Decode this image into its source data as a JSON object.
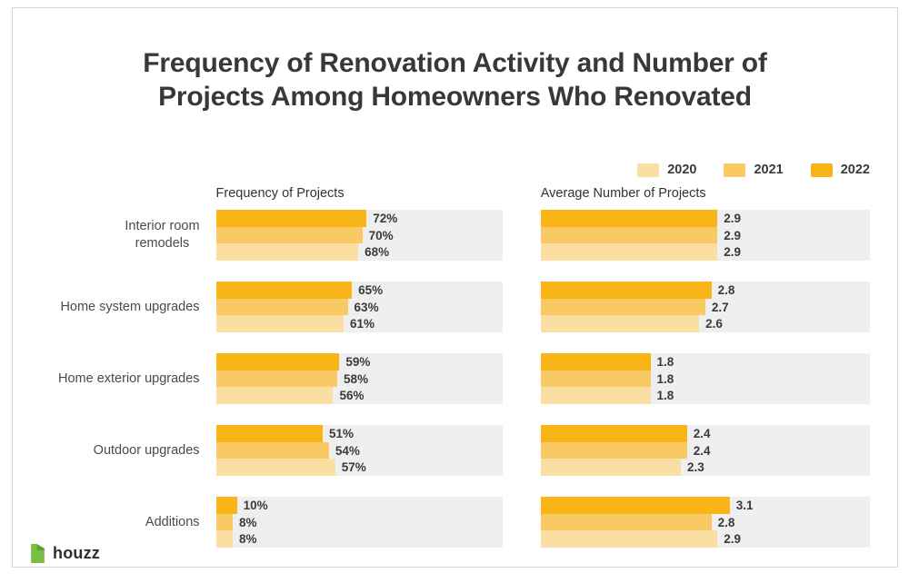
{
  "title": {
    "line1": "Frequency of Renovation Activity and Number of",
    "line2": "Projects Among Homeowners Who Renovated"
  },
  "legend": {
    "items": [
      {
        "label": "2020",
        "color": "#FBDFA2"
      },
      {
        "label": "2021",
        "color": "#F9CA63"
      },
      {
        "label": "2022",
        "color": "#F9B517"
      }
    ]
  },
  "colors": {
    "track": "#EFEFEF",
    "houzz_green": "#76BF43"
  },
  "logo": {
    "text": "houzz"
  },
  "chart_data": [
    {
      "type": "bar",
      "orientation": "horizontal",
      "title": "Frequency of Projects",
      "categories": [
        "Interior room\nremodels",
        "Home system upgrades",
        "Home exterior upgrades",
        "Outdoor upgrades",
        "Additions"
      ],
      "series": [
        {
          "name": "2022",
          "values": [
            72,
            65,
            59,
            51,
            10
          ],
          "labels": [
            "72%",
            "65%",
            "59%",
            "51%",
            "10%"
          ]
        },
        {
          "name": "2021",
          "values": [
            70,
            63,
            58,
            54,
            8
          ],
          "labels": [
            "70%",
            "63%",
            "58%",
            "54%",
            "8%"
          ]
        },
        {
          "name": "2020",
          "values": [
            68,
            61,
            56,
            57,
            8
          ],
          "labels": [
            "68%",
            "61%",
            "56%",
            "57%",
            "8%"
          ]
        }
      ],
      "bar_order_top_to_bottom": [
        "2022",
        "2021",
        "2020"
      ],
      "value_suffix": "%",
      "xlim": [
        0,
        137
      ],
      "grid": false,
      "legend_position": "top-right"
    },
    {
      "type": "bar",
      "orientation": "horizontal",
      "title": "Average Number of Projects",
      "categories": [
        "Interior room\nremodels",
        "Home system upgrades",
        "Home exterior upgrades",
        "Outdoor upgrades",
        "Additions"
      ],
      "series": [
        {
          "name": "2022",
          "values": [
            2.9,
            2.8,
            1.8,
            2.4,
            3.1
          ],
          "labels": [
            "2.9",
            "2.8",
            "1.8",
            "2.4",
            "3.1"
          ]
        },
        {
          "name": "2021",
          "values": [
            2.9,
            2.7,
            1.8,
            2.4,
            2.8
          ],
          "labels": [
            "2.9",
            "2.7",
            "1.8",
            "2.4",
            "2.8"
          ]
        },
        {
          "name": "2020",
          "values": [
            2.9,
            2.6,
            1.8,
            2.3,
            2.9
          ],
          "labels": [
            "2.9",
            "2.6",
            "1.8",
            "2.3",
            "2.9"
          ]
        }
      ],
      "bar_order_top_to_bottom": [
        "2022",
        "2021",
        "2020"
      ],
      "value_suffix": "",
      "xlim": [
        0,
        5.4
      ],
      "grid": false,
      "legend_position": "top-right"
    }
  ]
}
